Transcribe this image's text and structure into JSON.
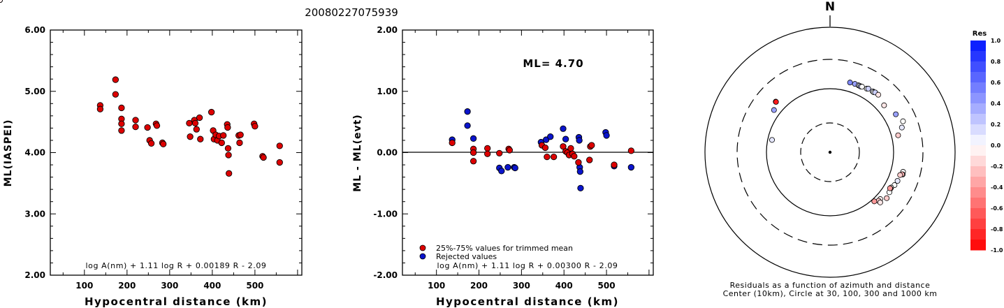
{
  "title": "20080227075939",
  "colors": {
    "accepted": "#dd0000",
    "rejected": "#0a14cc",
    "axis": "#000000"
  },
  "chart_data": [
    {
      "type": "scatter",
      "id": "ml-vs-distance",
      "ylabel": "ML(IASPEI)",
      "xlabel": "Hypocentral distance (km)",
      "xlim": [
        20,
        610
      ],
      "ylim": [
        2.0,
        6.0
      ],
      "xticks": [
        "100",
        "200",
        "300",
        "400",
        "500"
      ],
      "yticks": [
        "2.00",
        "3.00",
        "4.00",
        "5.00",
        "6.00"
      ],
      "formula": "log A(nm) + 1.11 log R + 0.00189 R - 2.09",
      "series": [
        {
          "points": [
            [
              137,
              4.77
            ],
            [
              137,
              4.71
            ],
            [
              173,
              5.19
            ],
            [
              173,
              4.95
            ],
            [
              187,
              4.73
            ],
            [
              187,
              4.55
            ],
            [
              187,
              4.47
            ],
            [
              187,
              4.36
            ],
            [
              220,
              4.53
            ],
            [
              220,
              4.42
            ],
            [
              248,
              4.41
            ],
            [
              253,
              4.2
            ],
            [
              257,
              4.15
            ],
            [
              268,
              4.47
            ],
            [
              270,
              4.44
            ],
            [
              283,
              4.16
            ],
            [
              285,
              4.14
            ],
            [
              346,
              4.48
            ],
            [
              348,
              4.26
            ],
            [
              358,
              4.53
            ],
            [
              360,
              4.48
            ],
            [
              363,
              4.38
            ],
            [
              370,
              4.57
            ],
            [
              372,
              4.22
            ],
            [
              398,
              4.66
            ],
            [
              402,
              4.36
            ],
            [
              404,
              4.22
            ],
            [
              408,
              4.29
            ],
            [
              412,
              4.2
            ],
            [
              416,
              4.27
            ],
            [
              422,
              4.16
            ],
            [
              426,
              4.28
            ],
            [
              435,
              4.46
            ],
            [
              436,
              4.41
            ],
            [
              437,
              4.07
            ],
            [
              438,
              3.96
            ],
            [
              439,
              3.66
            ],
            [
              462,
              4.28
            ],
            [
              464,
              4.16
            ],
            [
              466,
              4.29
            ],
            [
              498,
              4.47
            ],
            [
              500,
              4.43
            ],
            [
              518,
              3.94
            ],
            [
              520,
              3.92
            ],
            [
              558,
              4.11
            ],
            [
              558,
              3.84
            ]
          ]
        }
      ]
    },
    {
      "type": "scatter",
      "id": "residual-vs-distance",
      "ylabel": "ML - ML(evt)",
      "xlabel": "Hypocentral distance (km)",
      "xlim": [
        20,
        610
      ],
      "ylim": [
        -2.0,
        2.0
      ],
      "xticks": [
        "100",
        "200",
        "300",
        "400",
        "500"
      ],
      "yticks": [
        "-2.00",
        "-1.00",
        "0.00",
        "1.00",
        "2.00"
      ],
      "annotation": "ML= 4.70",
      "legend": [
        "25%-75% values for trimmed mean",
        "Rejected values"
      ],
      "formula": "log A(nm) + 1.11 log R + 0.00300 R - 2.09",
      "series": [
        {
          "name": "25%-75% values for trimmed mean",
          "points": [
            [
              137,
              0.16
            ],
            [
              187,
              0.06
            ],
            [
              187,
              0.0
            ],
            [
              187,
              -0.14
            ],
            [
              220,
              0.07
            ],
            [
              220,
              -0.02
            ],
            [
              248,
              -0.01
            ],
            [
              270,
              0.06
            ],
            [
              272,
              0.04
            ],
            [
              348,
              0.12
            ],
            [
              356,
              0.08
            ],
            [
              360,
              -0.07
            ],
            [
              376,
              -0.07
            ],
            [
              398,
              0.1
            ],
            [
              404,
              0.02
            ],
            [
              408,
              0.0
            ],
            [
              412,
              -0.04
            ],
            [
              416,
              0.07
            ],
            [
              420,
              -0.02
            ],
            [
              424,
              -0.06
            ],
            [
              434,
              -0.16
            ],
            [
              462,
              0.1
            ],
            [
              465,
              0.12
            ],
            [
              460,
              -0.12
            ],
            [
              518,
              -0.2
            ],
            [
              558,
              0.03
            ]
          ]
        },
        {
          "name": "Rejected values",
          "points": [
            [
              137,
              0.21
            ],
            [
              173,
              0.67
            ],
            [
              173,
              0.44
            ],
            [
              187,
              0.23
            ],
            [
              248,
              -0.25
            ],
            [
              253,
              -0.3
            ],
            [
              268,
              -0.24
            ],
            [
              283,
              -0.24
            ],
            [
              285,
              -0.25
            ],
            [
              346,
              0.17
            ],
            [
              358,
              0.21
            ],
            [
              368,
              0.26
            ],
            [
              398,
              0.39
            ],
            [
              404,
              0.22
            ],
            [
              435,
              0.25
            ],
            [
              436,
              0.2
            ],
            [
              437,
              -0.24
            ],
            [
              438,
              -0.31
            ],
            [
              439,
              -0.58
            ],
            [
              498,
              0.33
            ],
            [
              500,
              0.28
            ],
            [
              518,
              -0.22
            ],
            [
              558,
              -0.24
            ]
          ]
        }
      ]
    },
    {
      "type": "scatter",
      "id": "azimuth-plot",
      "north_label": "N",
      "caption": [
        "Residuals as a function of azimuth and distance",
        "Center (10km), Circle at 30, 100, 300 and 1000 km"
      ],
      "colorbar": {
        "title": "Res",
        "ticks": [
          "1.0",
          "0.8",
          "0.6",
          "0.4",
          "0.2",
          "0.0",
          "-0.2",
          "-0.4",
          "-0.6",
          "-0.8",
          "-1.0"
        ],
        "range": [
          -1.0,
          1.0
        ]
      },
      "stations": [
        [
          -78,
          86,
          0.1
        ],
        [
          -71,
          -56,
          0.0
        ],
        [
          -11,
          -54,
          0.0
        ],
        [
          -4,
          -54,
          0.0
        ],
        [
          -2,
          -20,
          -0.05
        ],
        [
          -53,
          128,
          0.4
        ],
        [
          -47,
          149,
          -0.9
        ],
        [
          -47,
          147,
          -0.9
        ],
        [
          16,
          140,
          0.5
        ],
        [
          20,
          141,
          0.4
        ],
        [
          23,
          141,
          0.2
        ],
        [
          24,
          141,
          0.0
        ],
        [
          25,
          140,
          0.3
        ],
        [
          26,
          142,
          0.0
        ],
        [
          30,
          145,
          0.0
        ],
        [
          31,
          149,
          0.2
        ],
        [
          35,
          150,
          0.1
        ],
        [
          36,
          149,
          0.0
        ],
        [
          37,
          153,
          0.2
        ],
        [
          40,
          154,
          -0.1
        ],
        [
          49,
          135,
          -0.1
        ],
        [
          60,
          159,
          0.4
        ],
        [
          71,
          159,
          0.1
        ],
        [
          67,
          180,
          0.0
        ],
        [
          76,
          128,
          -0.2
        ],
        [
          105,
          157,
          0.0
        ],
        [
          107,
          159,
          0.0
        ],
        [
          107,
          155,
          -0.3
        ],
        [
          108,
          146,
          -0.2
        ],
        [
          113,
          144,
          0.1
        ],
        [
          117,
          139,
          0.0
        ],
        [
          120,
          130,
          0.0
        ],
        [
          121,
          130,
          -0.4
        ],
        [
          124,
          135,
          0.0
        ],
        [
          121,
          127,
          -0.4
        ],
        [
          133,
          121,
          -0.05
        ],
        [
          135,
          121,
          -0.2
        ],
        [
          138,
          110,
          -0.4
        ],
        [
          135,
          132,
          -0.1
        ],
        [
          129,
          142,
          -0.2
        ]
      ]
    }
  ]
}
